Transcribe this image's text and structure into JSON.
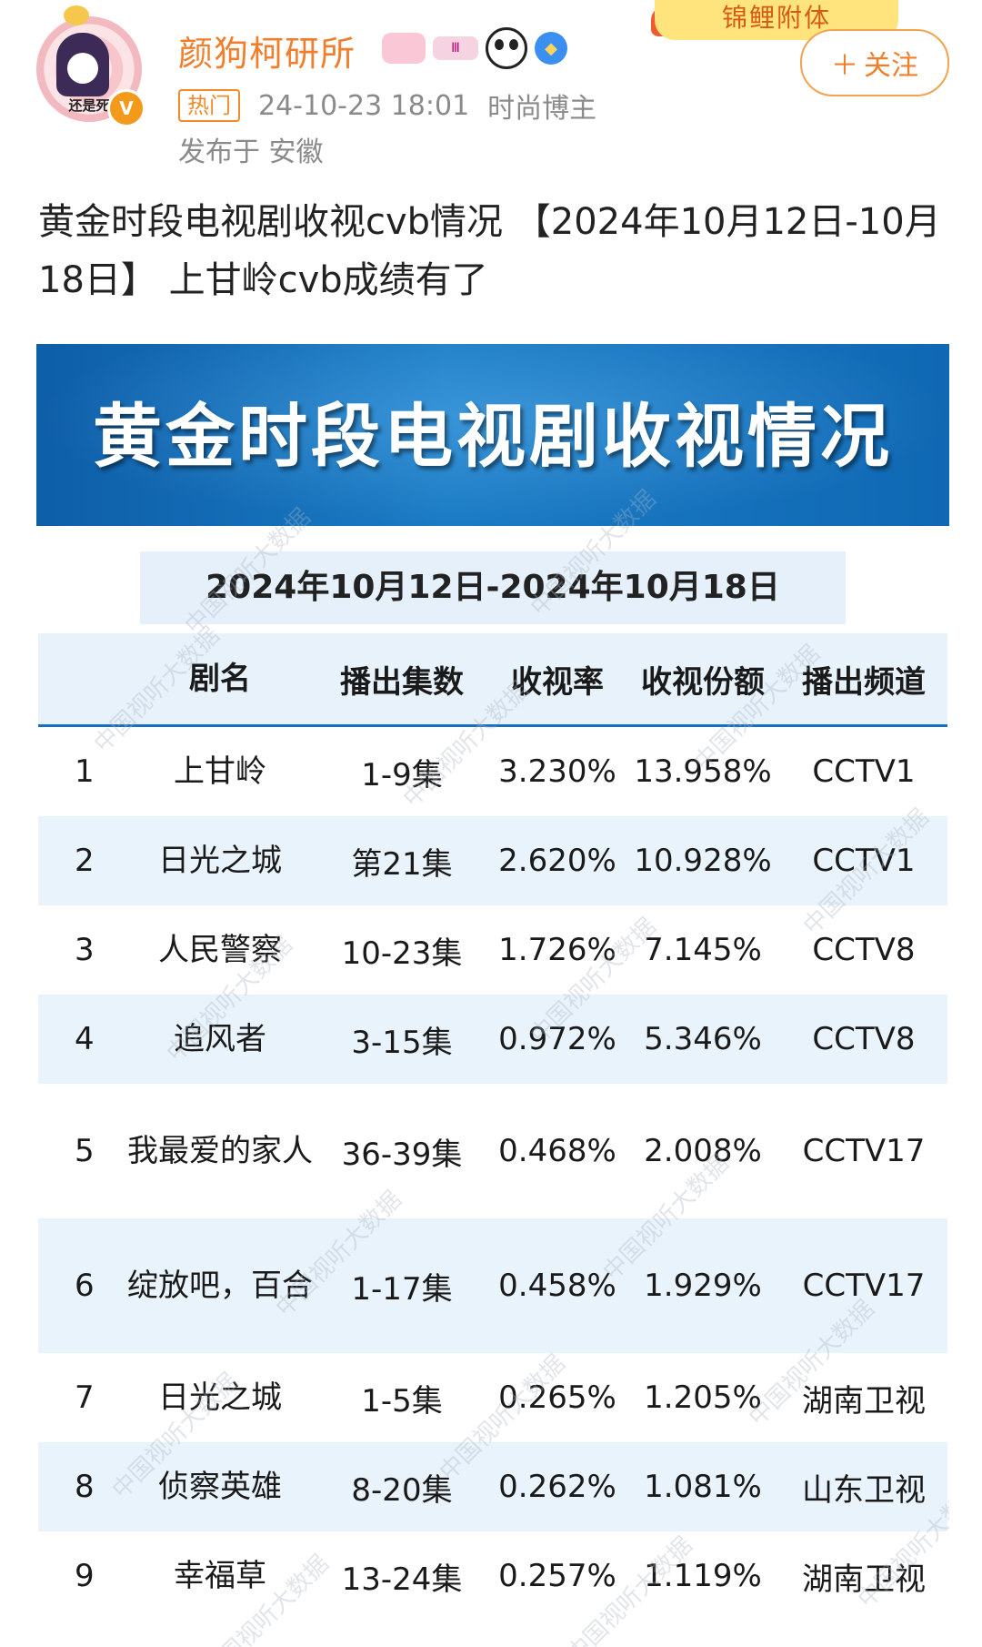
{
  "post": {
    "username": "颜狗柯研所",
    "avatar_caption": "还是死",
    "verified_mark": "V",
    "badge_b_text": "Ⅲ",
    "banner_text": "锦鲤附体",
    "follow_label": "关注",
    "follow_icon": "plus-icon",
    "hot_tag": "热门",
    "timestamp": "24-10-23 18:01",
    "author_type": "时尚博主",
    "location": "发布于 安徽",
    "text": "黄金时段电视剧收视cvb情况 【2024年10月12日-10月18日】 上甘岭cvb成绩有了",
    "accent_color": "#f07e2b"
  },
  "infographic": {
    "title": "黄金时段电视剧收视情况",
    "date_range": "2024年10月12日-2024年10月18日",
    "watermark": "中国视听大数据",
    "header_color": "#1068b3",
    "columns": [
      "剧名",
      "播出集数",
      "收视率",
      "收视份额",
      "播出频道"
    ],
    "rows": [
      {
        "rank": "1",
        "name": "上甘岭",
        "episodes": "1-9集",
        "rating": "3.230%",
        "share": "13.958%",
        "channel": "CCTV1"
      },
      {
        "rank": "2",
        "name": "日光之城",
        "episodes": "第21集",
        "rating": "2.620%",
        "share": "10.928%",
        "channel": "CCTV1"
      },
      {
        "rank": "3",
        "name": "人民警察",
        "episodes": "10-23集",
        "rating": "1.726%",
        "share": "7.145%",
        "channel": "CCTV8"
      },
      {
        "rank": "4",
        "name": "追风者",
        "episodes": "3-15集",
        "rating": "0.972%",
        "share": "5.346%",
        "channel": "CCTV8"
      },
      {
        "rank": "5",
        "name": "我最爱的家人",
        "episodes": "36-39集",
        "rating": "0.468%",
        "share": "2.008%",
        "channel": "CCTV17"
      },
      {
        "rank": "6",
        "name": "绽放吧，百合",
        "episodes": "1-17集",
        "rating": "0.458%",
        "share": "1.929%",
        "channel": "CCTV17"
      },
      {
        "rank": "7",
        "name": "日光之城",
        "episodes": "1-5集",
        "rating": "0.265%",
        "share": "1.205%",
        "channel": "湖南卫视"
      },
      {
        "rank": "8",
        "name": "侦察英雄",
        "episodes": "8-20集",
        "rating": "0.262%",
        "share": "1.081%",
        "channel": "山东卫视"
      },
      {
        "rank": "9",
        "name": "幸福草",
        "episodes": "13-24集",
        "rating": "0.257%",
        "share": "1.119%",
        "channel": "湖南卫视"
      }
    ]
  }
}
